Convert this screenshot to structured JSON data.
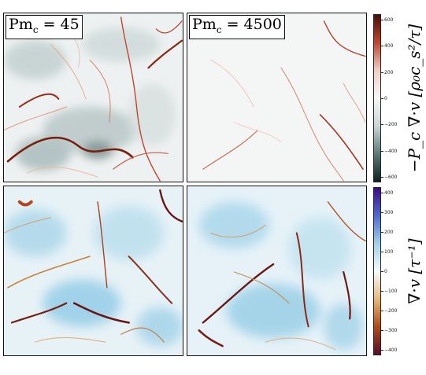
{
  "panels": {
    "label_left": "Pm",
    "label_left_sub": "c",
    "label_left_value": " = 45",
    "label_right": "Pm",
    "label_right_sub": "c",
    "label_right_value": " = 4500"
  },
  "colorbar_top": {
    "label": "−P_c ∇·v [ρ₀c_s²/τ]",
    "ticks": [
      "600",
      "400",
      "200",
      "0",
      "−200",
      "−400",
      "−600"
    ],
    "colors": [
      "#4a0d05",
      "#c2452c",
      "#f3cfc4",
      "#f7f7f7",
      "#c9d6d6",
      "#5b7a78",
      "#0f2020"
    ]
  },
  "colorbar_bottom": {
    "label": "∇·v [τ⁻¹]",
    "ticks": [
      "400",
      "300",
      "200",
      "100",
      "0",
      "−100",
      "−200",
      "−300",
      "−400"
    ],
    "colors": [
      "#3a0a8a",
      "#4f68d6",
      "#9fd3ea",
      "#f5fafc",
      "#e9b97a",
      "#b24a14",
      "#5a0d2a"
    ]
  }
}
